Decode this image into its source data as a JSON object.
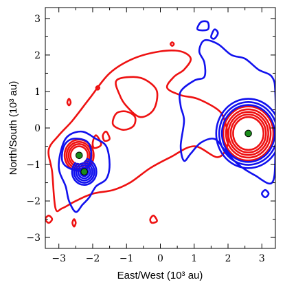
{
  "chart_data": {
    "type": "contour",
    "title": "",
    "xlabel": "East/West (10³ au)",
    "ylabel": "North/South (10³ au)",
    "xlim": [
      -3.4,
      3.4
    ],
    "ylim": [
      -3.3,
      3.3
    ],
    "x_ticks": [
      -3,
      -2,
      -1,
      0,
      1,
      2,
      3
    ],
    "y_ticks": [
      -3,
      -2,
      -1,
      0,
      1,
      2,
      3
    ],
    "x_tick_labels": [
      "−3",
      "−2",
      "−1",
      "0",
      "1",
      "2",
      "3"
    ],
    "y_tick_labels": [
      "−3",
      "−2",
      "−1",
      "0",
      "1",
      "2",
      "3"
    ],
    "grid": false,
    "colors": {
      "red": "#ee1111",
      "blue": "#1111ee",
      "marker": "#1a8c1a"
    },
    "series": [
      {
        "color": "red",
        "contours": [
          [
            [
              -3.1,
              -2.2
            ],
            [
              -3.2,
              -1.2
            ],
            [
              -3.3,
              -0.6
            ],
            [
              -3.0,
              -0.2
            ],
            [
              -2.6,
              0.2
            ],
            [
              -2.1,
              0.8
            ],
            [
              -1.5,
              1.5
            ],
            [
              -0.8,
              1.9
            ],
            [
              0.0,
              2.1
            ],
            [
              0.6,
              2.1
            ],
            [
              0.9,
              1.9
            ],
            [
              0.7,
              1.6
            ],
            [
              0.4,
              1.4
            ],
            [
              0.2,
              1.1
            ],
            [
              0.6,
              0.9
            ],
            [
              1.1,
              0.8
            ],
            [
              1.7,
              0.5
            ],
            [
              1.9,
              0.2
            ],
            [
              2.0,
              -0.4
            ],
            [
              1.7,
              -0.8
            ],
            [
              1.0,
              -0.5
            ],
            [
              0.3,
              -0.8
            ],
            [
              -0.3,
              -1.1
            ],
            [
              -0.9,
              -1.5
            ],
            [
              -1.4,
              -1.7
            ],
            [
              -2.0,
              -1.8
            ],
            [
              -2.5,
              -2.0
            ],
            [
              -2.9,
              -2.2
            ],
            [
              -3.1,
              -2.2
            ]
          ],
          [
            [
              -1.2,
              0.9
            ],
            [
              -1.3,
              1.3
            ],
            [
              -0.8,
              1.4
            ],
            [
              -0.4,
              1.3
            ],
            [
              -0.1,
              1.0
            ],
            [
              -0.2,
              0.5
            ],
            [
              -0.6,
              0.3
            ],
            [
              -1.0,
              0.6
            ],
            [
              -1.2,
              0.9
            ]
          ],
          [
            [
              -1.4,
              0.1
            ],
            [
              -1.3,
              0.4
            ],
            [
              -1.0,
              0.45
            ],
            [
              -0.75,
              0.3
            ],
            [
              -0.8,
              0.05
            ],
            [
              -1.1,
              -0.05
            ],
            [
              -1.4,
              0.1
            ]
          ],
          [
            [
              -1.7,
              -0.2
            ],
            [
              -1.6,
              -0.1
            ],
            [
              -1.5,
              -0.3
            ],
            [
              -1.65,
              -0.35
            ],
            [
              -1.7,
              -0.2
            ]
          ],
          [
            [
              -2.0,
              -0.4
            ],
            [
              -1.9,
              -0.2
            ],
            [
              -1.75,
              -0.45
            ],
            [
              -1.95,
              -0.55
            ],
            [
              -2.0,
              -0.4
            ]
          ],
          [
            [
              -2.6,
              -2.6
            ],
            [
              -2.55,
              -2.5
            ],
            [
              -2.5,
              -2.6
            ],
            [
              -2.55,
              -2.7
            ],
            [
              -2.6,
              -2.6
            ]
          ],
          [
            [
              -3.4,
              -2.5
            ],
            [
              -3.3,
              -2.4
            ],
            [
              -3.2,
              -2.5
            ],
            [
              -3.3,
              -2.6
            ],
            [
              -3.4,
              -2.5
            ]
          ],
          [
            [
              -0.3,
              -2.5
            ],
            [
              -0.2,
              -2.4
            ],
            [
              -0.1,
              -2.55
            ],
            [
              -0.25,
              -2.6
            ],
            [
              -0.3,
              -2.5
            ]
          ],
          [
            [
              -2.75,
              0.7
            ],
            [
              -2.7,
              0.8
            ],
            [
              -2.65,
              0.7
            ],
            [
              -2.7,
              0.62
            ],
            [
              -2.75,
              0.7
            ]
          ],
          [
            [
              -1.9,
              1.1
            ],
            [
              -1.85,
              1.15
            ],
            [
              -1.8,
              1.1
            ],
            [
              -1.85,
              1.05
            ],
            [
              -1.9,
              1.1
            ]
          ],
          [
            [
              0.3,
              2.3
            ],
            [
              0.35,
              2.35
            ],
            [
              0.4,
              2.3
            ],
            [
              0.35,
              2.25
            ],
            [
              0.3,
              2.3
            ]
          ]
        ],
        "rings": [
          {
            "center": [
              -2.4,
              -0.75
            ],
            "radii": [
              0.25,
              0.31,
              0.37,
              0.43
            ]
          },
          {
            "center": [
              2.6,
              -0.15
            ],
            "radii": [
              0.45,
              0.52,
              0.59,
              0.66,
              0.74
            ]
          }
        ]
      },
      {
        "color": "blue",
        "contours": [
          [
            [
              -3.0,
              -1.1
            ],
            [
              -2.9,
              -0.5
            ],
            [
              -2.7,
              -0.2
            ],
            [
              -2.3,
              -0.1
            ],
            [
              -1.9,
              -0.3
            ],
            [
              -1.6,
              -0.5
            ],
            [
              -1.5,
              -1.0
            ],
            [
              -1.6,
              -1.4
            ],
            [
              -1.9,
              -1.6
            ],
            [
              -2.1,
              -1.9
            ],
            [
              -2.3,
              -2.1
            ],
            [
              -2.5,
              -2.3
            ],
            [
              -2.7,
              -2.0
            ],
            [
              -2.8,
              -1.6
            ],
            [
              -3.0,
              -1.1
            ]
          ],
          [
            [
              -2.9,
              -0.9
            ],
            [
              -2.85,
              -0.5
            ],
            [
              -2.6,
              -0.3
            ],
            [
              -2.2,
              -0.35
            ],
            [
              -2.05,
              -0.6
            ],
            [
              -2.1,
              -1.0
            ],
            [
              -2.35,
              -1.15
            ],
            [
              -2.7,
              -1.1
            ],
            [
              -2.9,
              -0.9
            ]
          ],
          [
            [
              0.6,
              1.0
            ],
            [
              1.0,
              1.3
            ],
            [
              1.3,
              1.4
            ],
            [
              1.3,
              1.8
            ],
            [
              1.15,
              2.1
            ],
            [
              1.3,
              2.4
            ],
            [
              1.7,
              2.3
            ],
            [
              2.1,
              2.0
            ],
            [
              2.5,
              1.9
            ],
            [
              2.9,
              1.6
            ],
            [
              3.3,
              1.4
            ],
            [
              3.4,
              0.9
            ],
            [
              3.4,
              -0.7
            ],
            [
              3.3,
              -1.5
            ],
            [
              2.8,
              -1.3
            ],
            [
              2.3,
              -1.0
            ],
            [
              1.9,
              -0.6
            ],
            [
              1.6,
              -0.3
            ],
            [
              1.2,
              -0.4
            ],
            [
              0.9,
              -0.7
            ],
            [
              0.7,
              -0.9
            ],
            [
              0.6,
              -0.5
            ],
            [
              0.7,
              0.2
            ],
            [
              0.6,
              0.6
            ],
            [
              0.6,
              1.0
            ]
          ],
          [
            [
              1.1,
              2.7
            ],
            [
              1.2,
              2.9
            ],
            [
              1.4,
              2.9
            ],
            [
              1.4,
              2.7
            ],
            [
              1.1,
              2.7
            ]
          ],
          [
            [
              1.5,
              2.5
            ],
            [
              1.6,
              2.7
            ],
            [
              1.7,
              2.6
            ],
            [
              1.6,
              2.45
            ],
            [
              1.5,
              2.5
            ]
          ],
          [
            [
              3.0,
              -1.8
            ],
            [
              3.1,
              -1.7
            ],
            [
              3.2,
              -1.8
            ],
            [
              3.1,
              -1.9
            ],
            [
              3.0,
              -1.8
            ]
          ]
        ],
        "rings": [
          {
            "center": [
              2.6,
              -0.15
            ],
            "radii": [
              0.78,
              0.86,
              0.95
            ]
          },
          {
            "center": [
              -2.25,
              -1.2
            ],
            "radii": [
              0.12,
              0.18,
              0.24,
              0.3,
              0.36
            ]
          }
        ]
      }
    ],
    "markers": [
      {
        "x": -2.4,
        "y": -0.75,
        "color": "marker",
        "halo": true
      },
      {
        "x": -2.25,
        "y": -1.2,
        "color": "marker",
        "halo": false
      },
      {
        "x": 2.6,
        "y": -0.15,
        "color": "marker",
        "halo": true
      }
    ]
  }
}
